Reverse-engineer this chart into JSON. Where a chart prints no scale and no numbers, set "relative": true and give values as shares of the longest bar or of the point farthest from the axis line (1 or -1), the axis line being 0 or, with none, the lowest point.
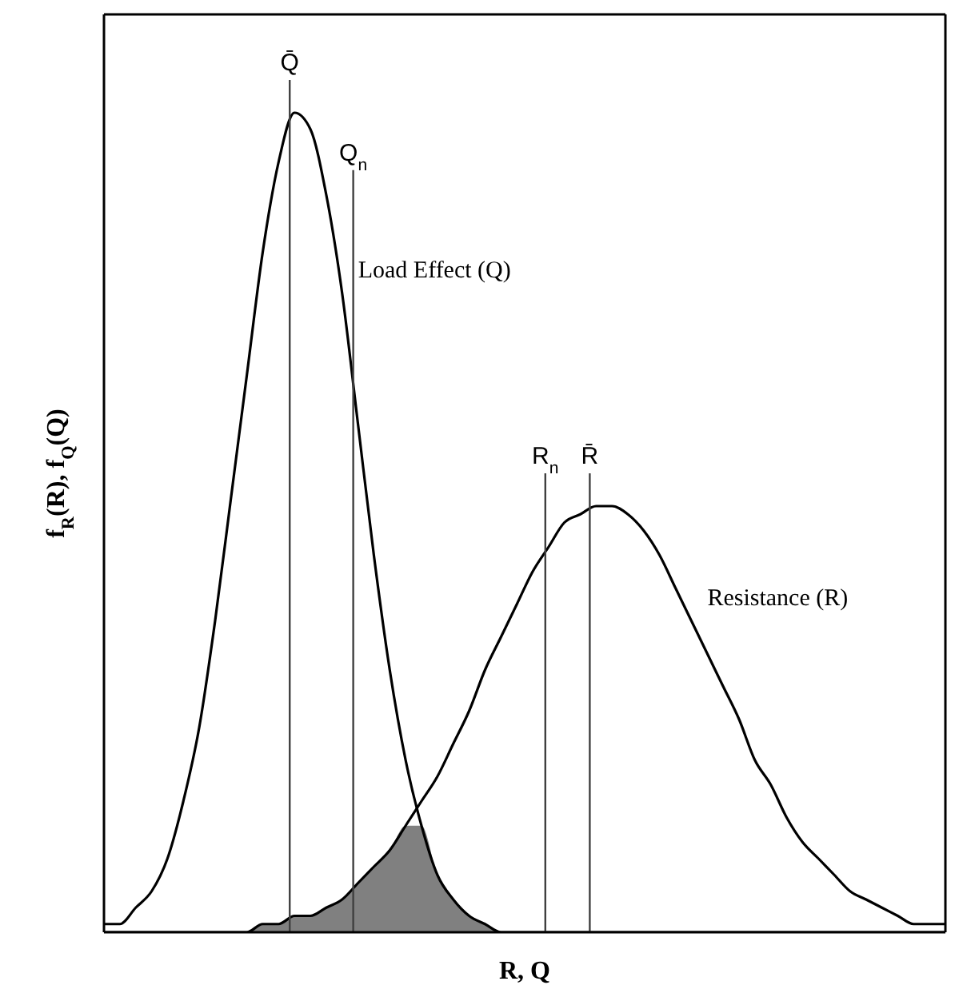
{
  "chart_data": {
    "type": "line",
    "relative": true,
    "xlabel": "R, Q",
    "ylabel": "f$_{R}$(R), f$_{Q}$(Q)",
    "categories": [
      null,
      null,
      null,
      null,
      null,
      null,
      null,
      null,
      null,
      null,
      null,
      null,
      null,
      null,
      null,
      null,
      null,
      null,
      null,
      null,
      null,
      null,
      null,
      null,
      null,
      null,
      null,
      null,
      null,
      null,
      null,
      null,
      null,
      null,
      null,
      null,
      null,
      null,
      null,
      null,
      null,
      null,
      null,
      null,
      null,
      null,
      null,
      null,
      null,
      null,
      null,
      null,
      null,
      null
    ],
    "series": [
      {
        "type": "area",
        "color": "#808080",
        "values": [
          0,
          0,
          0,
          0,
          0,
          0,
          0,
          0,
          0,
          0,
          0.01,
          0.01,
          0.02,
          0.02,
          0.03,
          0.04,
          0.06,
          0.08,
          0.1,
          0.13,
          0.13,
          0.07,
          0.04,
          0.02,
          0.01,
          0,
          0,
          0,
          0,
          0,
          0,
          0,
          0,
          0,
          0,
          0,
          0,
          0,
          0,
          0,
          0,
          0,
          0,
          0,
          0,
          0,
          0,
          0,
          0,
          0,
          0,
          0,
          0,
          0
        ]
      },
      {
        "name": "Load Effect (Q)",
        "color": "#000000",
        "values": [
          0.01,
          0.01,
          0.03,
          0.05,
          0.09,
          0.16,
          0.25,
          0.38,
          0.53,
          0.68,
          0.83,
          0.94,
          1,
          0.98,
          0.9,
          0.78,
          0.62,
          0.46,
          0.32,
          0.21,
          0.13,
          0.07,
          0.04,
          0.02,
          0.01,
          0,
          0,
          0,
          0,
          0,
          0,
          0,
          0,
          0,
          0,
          0,
          0,
          0,
          0,
          0,
          0,
          0,
          0,
          0,
          0,
          0,
          0,
          0,
          0,
          0,
          0,
          0,
          0,
          0
        ]
      },
      {
        "name": "Resistance (R)",
        "color": "#000000",
        "values": [
          0,
          0,
          0,
          0,
          0,
          0,
          0,
          0,
          0,
          0,
          0.01,
          0.01,
          0.02,
          0.02,
          0.03,
          0.04,
          0.06,
          0.08,
          0.1,
          0.13,
          0.16,
          0.19,
          0.23,
          0.27,
          0.32,
          0.36,
          0.4,
          0.44,
          0.47,
          0.5,
          0.51,
          0.52,
          0.52,
          0.51,
          0.49,
          0.46,
          0.42,
          0.38,
          0.34,
          0.3,
          0.26,
          0.21,
          0.18,
          0.14,
          0.11,
          0.09,
          0.07,
          0.05,
          0.04,
          0.03,
          0.02,
          0.01,
          0.01,
          0.01
        ]
      }
    ],
    "annotations": [
      "Q̄",
      "Q$_{n}$",
      "R$_{n}$",
      "R̄"
    ],
    "grid": false,
    "legend": false,
    "marker": "none",
    "line_style": "solid"
  }
}
